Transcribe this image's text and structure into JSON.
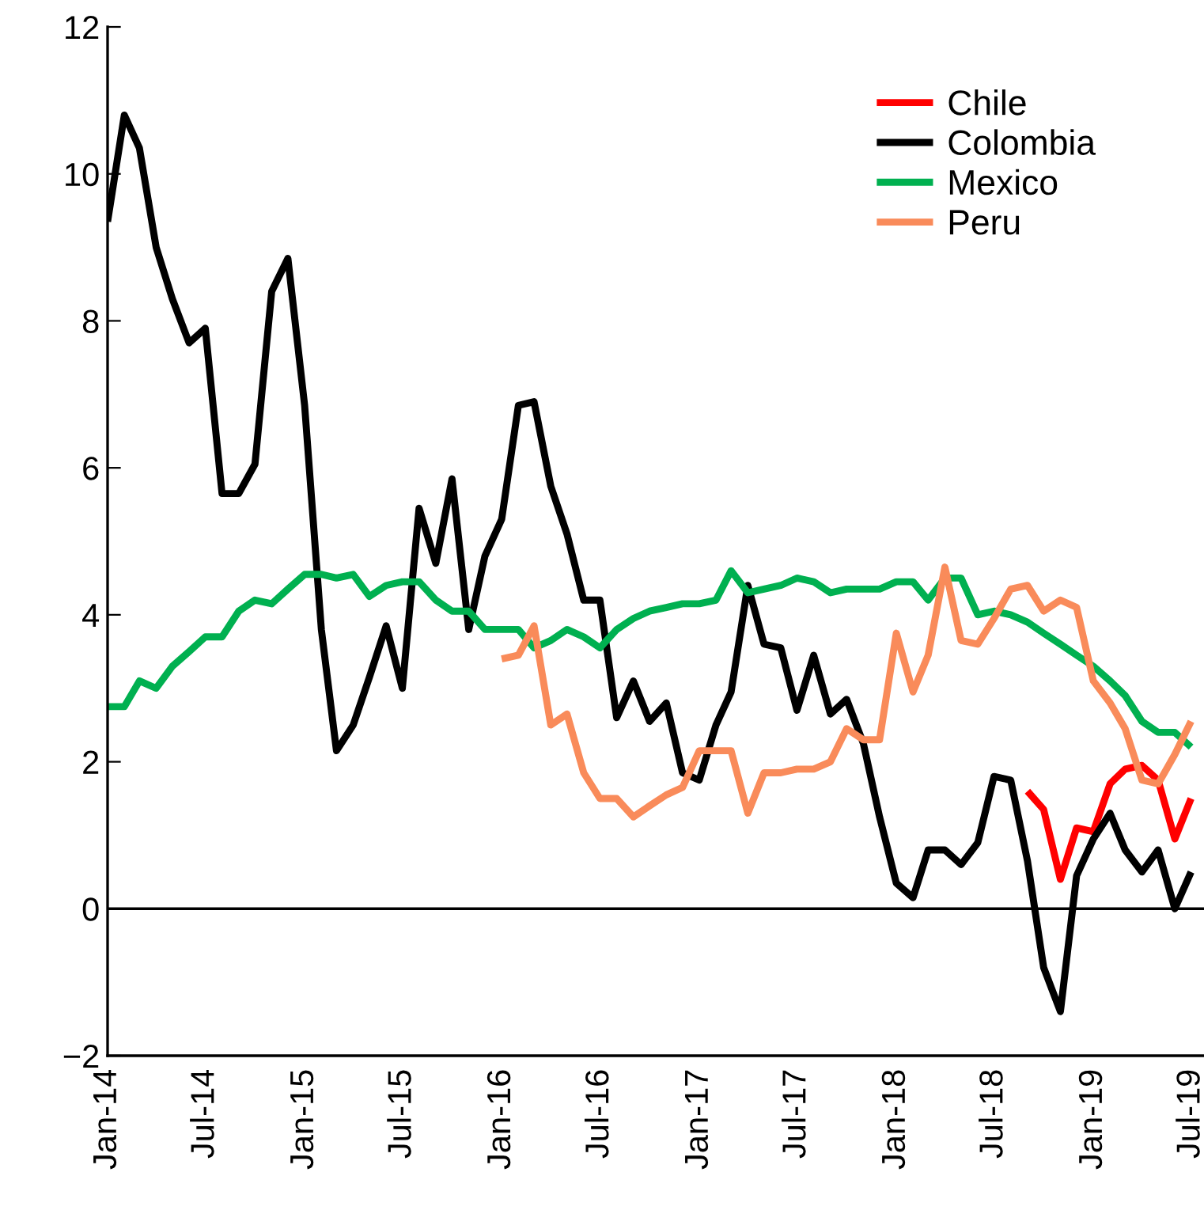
{
  "chart_data": {
    "type": "line",
    "x": [
      "2014-01",
      "2014-02",
      "2014-03",
      "2014-04",
      "2014-05",
      "2014-06",
      "2014-07",
      "2014-08",
      "2014-09",
      "2014-10",
      "2014-11",
      "2014-12",
      "2015-01",
      "2015-02",
      "2015-03",
      "2015-04",
      "2015-05",
      "2015-06",
      "2015-07",
      "2015-08",
      "2015-09",
      "2015-10",
      "2015-11",
      "2015-12",
      "2016-01",
      "2016-02",
      "2016-03",
      "2016-04",
      "2016-05",
      "2016-06",
      "2016-07",
      "2016-08",
      "2016-09",
      "2016-10",
      "2016-11",
      "2016-12",
      "2017-01",
      "2017-02",
      "2017-03",
      "2017-04",
      "2017-05",
      "2017-06",
      "2017-07",
      "2017-08",
      "2017-09",
      "2017-10",
      "2017-11",
      "2017-12",
      "2018-01",
      "2018-02",
      "2018-03",
      "2018-04",
      "2018-05",
      "2018-06",
      "2018-07",
      "2018-08",
      "2018-09",
      "2018-10",
      "2018-11",
      "2018-12",
      "2019-01",
      "2019-02",
      "2019-03",
      "2019-04",
      "2019-05",
      "2019-06",
      "2019-07"
    ],
    "series": [
      {
        "name": "Chile",
        "color": "#ff0000",
        "values": [
          null,
          null,
          null,
          null,
          null,
          null,
          null,
          null,
          null,
          null,
          null,
          null,
          null,
          null,
          null,
          null,
          null,
          null,
          null,
          null,
          null,
          null,
          null,
          null,
          null,
          null,
          null,
          null,
          null,
          null,
          null,
          null,
          null,
          null,
          null,
          null,
          null,
          null,
          null,
          null,
          null,
          null,
          null,
          null,
          null,
          null,
          null,
          null,
          null,
          null,
          null,
          null,
          null,
          null,
          null,
          null,
          1.6,
          1.35,
          0.4,
          1.1,
          1.05,
          1.7,
          1.9,
          1.95,
          1.75,
          0.95,
          1.5
        ]
      },
      {
        "name": "Colombia",
        "color": "#000000",
        "values": [
          9.35,
          10.8,
          10.35,
          9.0,
          8.3,
          7.7,
          7.9,
          5.65,
          5.65,
          6.05,
          8.4,
          8.85,
          6.85,
          3.8,
          2.15,
          2.5,
          3.15,
          3.85,
          3.0,
          5.45,
          4.7,
          5.85,
          3.8,
          4.8,
          5.3,
          6.85,
          6.9,
          5.75,
          5.1,
          4.2,
          4.2,
          2.6,
          3.1,
          2.55,
          2.8,
          1.85,
          1.75,
          2.5,
          2.95,
          4.4,
          3.6,
          3.55,
          2.7,
          3.45,
          2.65,
          2.85,
          2.25,
          1.25,
          0.35,
          0.15,
          0.8,
          0.8,
          0.6,
          0.9,
          1.8,
          1.75,
          0.65,
          -0.8,
          -1.4,
          0.45,
          0.95,
          1.3,
          0.8,
          0.5,
          0.8,
          0.0,
          0.5
        ]
      },
      {
        "name": "Mexico",
        "color": "#00b050",
        "values": [
          2.75,
          2.75,
          3.1,
          3.0,
          3.3,
          3.5,
          3.7,
          3.7,
          4.05,
          4.2,
          4.15,
          4.35,
          4.55,
          4.55,
          4.5,
          4.55,
          4.25,
          4.4,
          4.45,
          4.45,
          4.2,
          4.05,
          4.05,
          3.8,
          3.8,
          3.8,
          3.55,
          3.65,
          3.8,
          3.7,
          3.55,
          3.8,
          3.95,
          4.05,
          4.1,
          4.15,
          4.15,
          4.2,
          4.6,
          4.3,
          4.35,
          4.4,
          4.5,
          4.45,
          4.3,
          4.35,
          4.35,
          4.35,
          4.45,
          4.45,
          4.2,
          4.5,
          4.5,
          4.0,
          4.05,
          4.0,
          3.9,
          3.75,
          3.6,
          3.45,
          3.3,
          3.1,
          2.9,
          2.55,
          2.4,
          2.4,
          2.2
        ]
      },
      {
        "name": "Peru",
        "color": "#f98b5a",
        "values": [
          null,
          null,
          null,
          null,
          null,
          null,
          null,
          null,
          null,
          null,
          null,
          null,
          null,
          null,
          null,
          null,
          null,
          null,
          null,
          null,
          null,
          null,
          null,
          null,
          3.4,
          3.45,
          3.85,
          2.5,
          2.65,
          1.85,
          1.5,
          1.5,
          1.25,
          1.4,
          1.55,
          1.65,
          2.15,
          2.15,
          2.15,
          1.3,
          1.85,
          1.85,
          1.9,
          1.9,
          2.0,
          2.45,
          2.3,
          2.3,
          3.75,
          2.95,
          3.45,
          4.65,
          3.65,
          3.6,
          3.95,
          4.35,
          4.4,
          4.05,
          4.2,
          4.1,
          3.1,
          2.8,
          2.45,
          1.75,
          1.7,
          2.1,
          2.55
        ]
      }
    ],
    "xlim": [
      "2014-01-01",
      "2019-07-25"
    ],
    "xticks": [
      {
        "value": "2014-01",
        "label": "Jan-14"
      },
      {
        "value": "2014-07",
        "label": "Jul-14"
      },
      {
        "value": "2015-01",
        "label": "Jan-15"
      },
      {
        "value": "2015-07",
        "label": "Jul-15"
      },
      {
        "value": "2016-01",
        "label": "Jan-16"
      },
      {
        "value": "2016-07",
        "label": "Jul-16"
      },
      {
        "value": "2017-01",
        "label": "Jan-17"
      },
      {
        "value": "2017-07",
        "label": "Jul-17"
      },
      {
        "value": "2018-01",
        "label": "Jan-18"
      },
      {
        "value": "2018-07",
        "label": "Jul-18"
      },
      {
        "value": "2019-01",
        "label": "Jan-19"
      },
      {
        "value": "2019-07",
        "label": "Jul-19"
      }
    ],
    "ylim": [
      -2,
      12
    ],
    "yticks": [
      {
        "value": -2,
        "label": "−2"
      },
      0,
      2,
      4,
      6,
      8,
      10,
      12
    ],
    "ref_lines": [
      {
        "axis": "y",
        "value": 0,
        "color": "#000000"
      }
    ],
    "legend": "top right",
    "grid": false,
    "line_style": "solid",
    "marker": "none"
  }
}
